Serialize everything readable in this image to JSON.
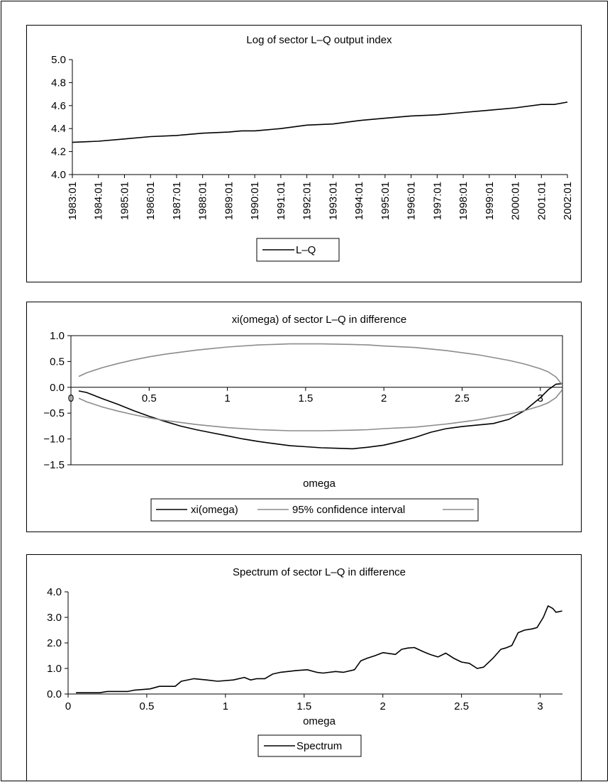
{
  "chart_data": [
    {
      "type": "line",
      "title": "Log of sector L–Q output index",
      "xlabel": "",
      "ylabel": "",
      "ylim": [
        4.0,
        5.0
      ],
      "yticks": [
        "5.0",
        "4.8",
        "4.6",
        "4.4",
        "4.2",
        "4.0"
      ],
      "x_tick_labels": [
        "1983:01",
        "1984:01",
        "1985:01",
        "1986:01",
        "1987:01",
        "1988:01",
        "1989:01",
        "1990:01",
        "1991:01",
        "1992:01",
        "1993:01",
        "1994:01",
        "1995:01",
        "1996:01",
        "1997:01",
        "1998:01",
        "1999:01",
        "2000:01",
        "2001:01",
        "2002:01"
      ],
      "grid": false,
      "legend_position": "bottom",
      "series": [
        {
          "name": "L–Q",
          "color": "#000000",
          "x": [
            "1983:01",
            "1984:01",
            "1985:01",
            "1986:01",
            "1987:01",
            "1988:01",
            "1989:01",
            "1989:07",
            "1990:01",
            "1991:01",
            "1992:01",
            "1993:01",
            "1994:01",
            "1995:01",
            "1996:01",
            "1997:01",
            "1998:01",
            "1999:01",
            "2000:01",
            "2001:01",
            "2001:07",
            "2002:01"
          ],
          "values": [
            4.28,
            4.29,
            4.31,
            4.33,
            4.34,
            4.36,
            4.37,
            4.38,
            4.38,
            4.4,
            4.43,
            4.44,
            4.47,
            4.49,
            4.51,
            4.52,
            4.54,
            4.56,
            4.58,
            4.61,
            4.61,
            4.63
          ]
        }
      ]
    },
    {
      "type": "line",
      "title": "xi(omega) of sector L–Q in difference",
      "xlabel": "omega",
      "ylabel": "",
      "xlim": [
        0,
        3.1416
      ],
      "ylim": [
        -1.5,
        1.0
      ],
      "xticks": [
        0,
        0.5,
        1,
        1.5,
        2,
        2.5,
        3
      ],
      "x_tick_labels": [
        "0",
        "0.5",
        "1",
        "1.5",
        "2",
        "2.5",
        "3"
      ],
      "yticks": [
        "1.0",
        "0.5",
        "0.0",
        "−0.5",
        "−1.0",
        "−1.5"
      ],
      "grid": false,
      "legend_position": "bottom",
      "series": [
        {
          "name": "xi(omega)",
          "color": "#000000",
          "x": [
            0.05,
            0.1,
            0.2,
            0.3,
            0.4,
            0.5,
            0.6,
            0.7,
            0.8,
            0.9,
            1.0,
            1.1,
            1.2,
            1.3,
            1.4,
            1.5,
            1.6,
            1.7,
            1.8,
            1.9,
            2.0,
            2.1,
            2.2,
            2.3,
            2.4,
            2.5,
            2.6,
            2.7,
            2.8,
            2.9,
            3.0,
            3.05,
            3.1,
            3.14
          ],
          "values": [
            -0.07,
            -0.1,
            -0.22,
            -0.33,
            -0.45,
            -0.56,
            -0.66,
            -0.75,
            -0.82,
            -0.88,
            -0.94,
            -1.0,
            -1.05,
            -1.09,
            -1.13,
            -1.15,
            -1.17,
            -1.18,
            -1.19,
            -1.16,
            -1.12,
            -1.05,
            -0.97,
            -0.87,
            -0.8,
            -0.76,
            -0.73,
            -0.7,
            -0.62,
            -0.45,
            -0.2,
            -0.05,
            0.06,
            0.07
          ]
        },
        {
          "name": "95% confidence interval",
          "color": "#8c8c8c",
          "x": [
            0.05,
            0.1,
            0.2,
            0.3,
            0.4,
            0.5,
            0.6,
            0.7,
            0.8,
            0.9,
            1.0,
            1.2,
            1.4,
            1.6,
            1.8,
            1.9,
            2.0,
            2.2,
            2.4,
            2.6,
            2.8,
            2.9,
            3.0,
            3.05,
            3.1,
            3.14
          ],
          "values": [
            0.21,
            0.28,
            0.38,
            0.46,
            0.53,
            0.59,
            0.64,
            0.68,
            0.72,
            0.75,
            0.78,
            0.82,
            0.84,
            0.84,
            0.83,
            0.82,
            0.8,
            0.77,
            0.71,
            0.63,
            0.52,
            0.45,
            0.36,
            0.3,
            0.2,
            0.05
          ]
        },
        {
          "name": "",
          "color": "#8c8c8c",
          "x": [
            0.05,
            0.1,
            0.2,
            0.3,
            0.4,
            0.5,
            0.6,
            0.7,
            0.8,
            0.9,
            1.0,
            1.2,
            1.4,
            1.6,
            1.8,
            1.9,
            2.0,
            2.2,
            2.4,
            2.6,
            2.8,
            2.9,
            3.0,
            3.05,
            3.1,
            3.14
          ],
          "values": [
            -0.21,
            -0.28,
            -0.38,
            -0.46,
            -0.53,
            -0.59,
            -0.64,
            -0.68,
            -0.72,
            -0.75,
            -0.78,
            -0.82,
            -0.84,
            -0.84,
            -0.83,
            -0.82,
            -0.8,
            -0.77,
            -0.71,
            -0.63,
            -0.52,
            -0.45,
            -0.36,
            -0.3,
            -0.2,
            -0.05
          ]
        }
      ]
    },
    {
      "type": "line",
      "title": "Spectrum of sector L–Q in difference",
      "xlabel": "omega",
      "ylabel": "",
      "xlim": [
        0,
        3.1416
      ],
      "ylim": [
        0.0,
        4.0
      ],
      "xticks": [
        0,
        0.5,
        1,
        1.5,
        2,
        2.5,
        3
      ],
      "x_tick_labels": [
        "0",
        "0.5",
        "1",
        "1.5",
        "2",
        "2.5",
        "3"
      ],
      "yticks": [
        "4.0",
        "3.0",
        "2.0",
        "1.0",
        "0.0"
      ],
      "grid": false,
      "legend_position": "bottom",
      "series": [
        {
          "name": "Spectrum",
          "color": "#000000",
          "x": [
            0.05,
            0.2,
            0.25,
            0.38,
            0.42,
            0.52,
            0.58,
            0.68,
            0.72,
            0.8,
            0.88,
            0.95,
            1.05,
            1.12,
            1.16,
            1.2,
            1.25,
            1.3,
            1.35,
            1.45,
            1.52,
            1.58,
            1.62,
            1.7,
            1.75,
            1.82,
            1.86,
            1.9,
            1.95,
            2.0,
            2.08,
            2.12,
            2.16,
            2.2,
            2.26,
            2.3,
            2.35,
            2.4,
            2.45,
            2.5,
            2.55,
            2.6,
            2.64,
            2.7,
            2.75,
            2.78,
            2.82,
            2.86,
            2.9,
            2.95,
            2.98,
            3.02,
            3.05,
            3.08,
            3.1,
            3.14
          ],
          "values": [
            0.05,
            0.05,
            0.1,
            0.1,
            0.15,
            0.2,
            0.3,
            0.3,
            0.5,
            0.6,
            0.55,
            0.5,
            0.55,
            0.65,
            0.55,
            0.6,
            0.6,
            0.78,
            0.85,
            0.92,
            0.95,
            0.85,
            0.82,
            0.88,
            0.85,
            0.95,
            1.3,
            1.4,
            1.5,
            1.62,
            1.55,
            1.75,
            1.8,
            1.82,
            1.65,
            1.55,
            1.45,
            1.6,
            1.4,
            1.25,
            1.2,
            1.0,
            1.05,
            1.4,
            1.75,
            1.8,
            1.9,
            2.4,
            2.5,
            2.55,
            2.6,
            3.0,
            3.45,
            3.35,
            3.2,
            3.25
          ]
        }
      ]
    }
  ]
}
